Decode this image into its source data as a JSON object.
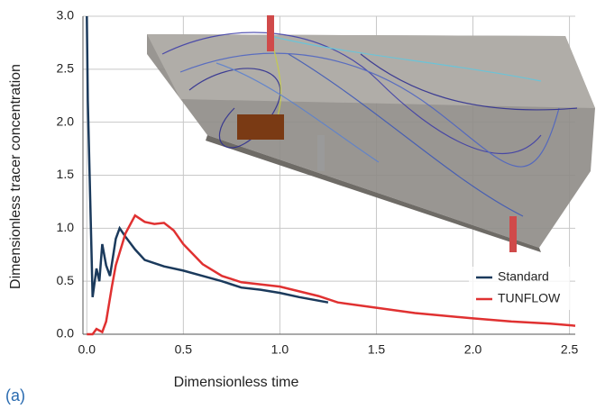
{
  "chart_data": {
    "type": "line",
    "panel_label": "(a)",
    "x_label": "Dimensionless time",
    "y_label": "Dimensionless tracer concentration",
    "xlim": [
      -0.02,
      2.53
    ],
    "ylim": [
      0,
      3.0
    ],
    "xticks": [
      {
        "value": 0,
        "label": "0.0"
      },
      0.5,
      {
        "value": 1,
        "label": "1.0"
      },
      1.5,
      {
        "value": 2,
        "label": "2.0"
      },
      2.5
    ],
    "yticks": [
      {
        "value": 0,
        "label": "0.0"
      },
      0.5,
      {
        "value": 1,
        "label": "1.0"
      },
      1.5,
      {
        "value": 2,
        "label": "2.0"
      },
      2.5,
      {
        "value": 3,
        "label": "3.0"
      }
    ],
    "grid": true,
    "legend": "lower right",
    "series": [
      {
        "name": "Standard",
        "color": "#1b3a5c",
        "x": [
          0,
          0.005,
          0.03,
          0.05,
          0.065,
          0.08,
          0.1,
          0.12,
          0.15,
          0.17,
          0.2,
          0.25,
          0.3,
          0.4,
          0.5,
          0.6,
          0.7,
          0.8,
          0.9,
          1.0,
          1.1,
          1.25
        ],
        "values": [
          3.0,
          2.2,
          0.35,
          0.62,
          0.5,
          0.85,
          0.65,
          0.55,
          0.9,
          1.0,
          0.92,
          0.8,
          0.7,
          0.64,
          0.6,
          0.55,
          0.5,
          0.44,
          0.42,
          0.39,
          0.35,
          0.3
        ]
      },
      {
        "name": "TUNFLOW",
        "color": "#e03131",
        "x": [
          0,
          0.03,
          0.05,
          0.08,
          0.1,
          0.13,
          0.15,
          0.2,
          0.25,
          0.3,
          0.35,
          0.4,
          0.45,
          0.5,
          0.6,
          0.7,
          0.8,
          1.0,
          1.2,
          1.3,
          1.5,
          1.7,
          2.0,
          2.2,
          2.4,
          2.53
        ],
        "values": [
          0,
          0.0,
          0.05,
          0.02,
          0.12,
          0.45,
          0.65,
          0.95,
          1.12,
          1.06,
          1.04,
          1.05,
          0.98,
          0.85,
          0.66,
          0.55,
          0.49,
          0.45,
          0.36,
          0.3,
          0.25,
          0.2,
          0.15,
          0.12,
          0.1,
          0.08
        ]
      }
    ]
  }
}
